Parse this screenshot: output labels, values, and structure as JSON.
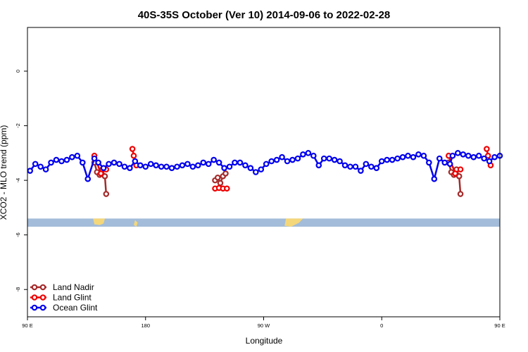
{
  "chart_data": {
    "type": "line",
    "title": "40S-35S October (Ver 10)   2014-09-06 to 2022-02-28",
    "xlabel": "Longitude",
    "ylabel": "XCO2 - MLO trend (ppm)",
    "xlim": [
      90,
      450
    ],
    "ylim": [
      -9,
      1.6
    ],
    "x_ticks": [
      {
        "value": 90,
        "label": "90 E"
      },
      {
        "value": 180,
        "label": "180"
      },
      {
        "value": 270,
        "label": "90 W"
      },
      {
        "value": 360,
        "label": "0"
      },
      {
        "value": 450,
        "label": "90 E"
      },
      {
        "value": 540,
        "label": "180"
      }
    ],
    "y_ticks": [
      {
        "value": 0,
        "label": "0"
      },
      {
        "value": -2,
        "label": "-2"
      },
      {
        "value": -4,
        "label": "-4"
      },
      {
        "value": -6,
        "label": "-6"
      },
      {
        "value": -8,
        "label": "-8"
      }
    ],
    "grid": false,
    "legend_position": "bottom-left",
    "map_strip": {
      "y_range": [
        -5.4,
        -5.7
      ],
      "ocean_color": "#a3bcd9",
      "land_color": "#f4d77a"
    },
    "series": [
      {
        "name": "Land Nadir",
        "color": "#a52a2a",
        "x": [
          141,
          143,
          145,
          147,
          149,
          150,
          233,
          235,
          237,
          239,
          241,
          411,
          413,
          415,
          417,
          419,
          420
        ],
        "y": [
          -3.35,
          -3.7,
          -3.8,
          -3.6,
          -3.85,
          -4.5,
          -4.0,
          -3.9,
          -4.1,
          -3.85,
          -3.75,
          -3.35,
          -3.7,
          -3.8,
          -3.6,
          -3.85,
          -4.5
        ]
      },
      {
        "name": "Land Glint",
        "color": "#ee0000",
        "x": [
          141,
          146,
          150,
          170,
          171,
          173,
          233,
          236,
          239,
          242,
          411,
          416,
          420,
          440,
          441,
          443
        ],
        "y": [
          -3.1,
          -3.75,
          -3.6,
          -2.85,
          -3.1,
          -3.45,
          -4.3,
          -4.28,
          -4.3,
          -4.3,
          -3.1,
          -3.75,
          -3.6,
          -2.85,
          -3.1,
          -3.45
        ]
      },
      {
        "name": "Ocean Glint",
        "color": "#0000ee",
        "x": [
          92,
          96,
          100,
          104,
          108,
          112,
          116,
          120,
          124,
          128,
          132,
          136,
          141,
          144,
          148,
          152,
          156,
          160,
          164,
          168,
          172,
          176,
          180,
          184,
          188,
          192,
          196,
          200,
          204,
          208,
          212,
          216,
          220,
          224,
          228,
          232,
          236,
          240,
          244,
          248,
          252,
          256,
          260,
          264,
          268,
          272,
          276,
          280,
          284,
          288,
          292,
          296,
          300,
          304,
          308,
          312,
          316,
          320,
          324,
          328,
          332,
          336,
          340,
          344,
          348,
          352,
          356,
          360,
          364,
          368,
          372,
          376,
          380,
          384,
          388,
          392,
          396,
          400,
          404,
          408,
          412,
          414,
          418,
          422,
          426,
          430,
          434,
          438,
          442,
          446,
          450
        ],
        "y": [
          -3.65,
          -3.4,
          -3.5,
          -3.6,
          -3.35,
          -3.25,
          -3.3,
          -3.25,
          -3.15,
          -3.1,
          -3.35,
          -3.95,
          -3.2,
          -3.35,
          -3.55,
          -3.4,
          -3.35,
          -3.4,
          -3.5,
          -3.55,
          -3.3,
          -3.45,
          -3.5,
          -3.4,
          -3.45,
          -3.5,
          -3.5,
          -3.55,
          -3.5,
          -3.45,
          -3.4,
          -3.5,
          -3.45,
          -3.35,
          -3.4,
          -3.25,
          -3.35,
          -3.55,
          -3.5,
          -3.35,
          -3.35,
          -3.45,
          -3.55,
          -3.7,
          -3.6,
          -3.4,
          -3.3,
          -3.25,
          -3.15,
          -3.3,
          -3.25,
          -3.2,
          -3.05,
          -3.0,
          -3.1,
          -3.45,
          -3.2,
          -3.2,
          -3.25,
          -3.3,
          -3.45,
          -3.5,
          -3.5,
          -3.65,
          -3.4,
          -3.5,
          -3.55,
          -3.3,
          -3.25,
          -3.25,
          -3.2,
          -3.15,
          -3.1,
          -3.15,
          -3.05,
          -3.1,
          -3.35,
          -3.95,
          -3.2,
          -3.35,
          -3.4,
          -3.1,
          -3.0,
          -3.05,
          -3.1,
          -3.15,
          -3.1,
          -3.2,
          -3.3,
          -3.15,
          -3.1
        ]
      }
    ]
  }
}
